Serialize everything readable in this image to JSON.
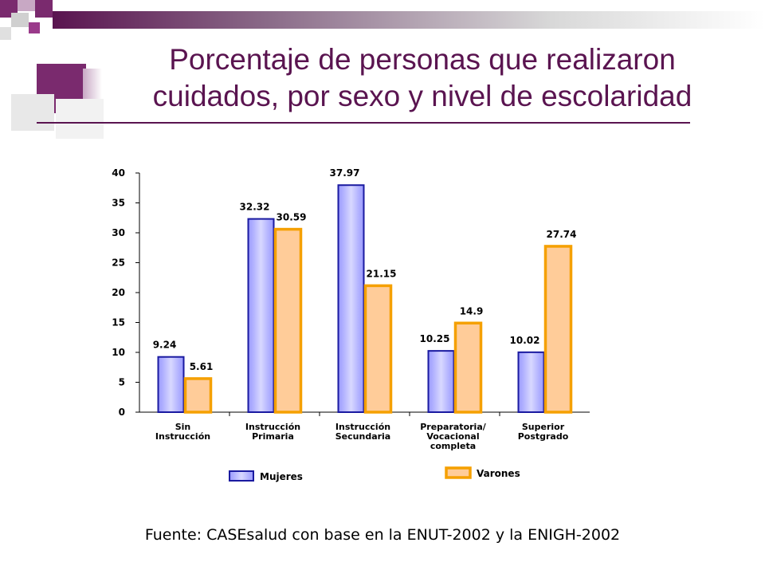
{
  "slide": {
    "title_line1": "Porcentaje de personas que realizaron",
    "title_line2": "cuidados, por sexo y nivel de escolaridad",
    "source": "Fuente: CASEsalud con base en la ENUT-2002 y la ENIGH-2002"
  },
  "colors": {
    "title": "#5a1450",
    "mujeres_fill": "#9999ff",
    "mujeres_stroke": "#1a1aa0",
    "varones_fill": "#ffcc99",
    "varones_stroke": "#f5a000"
  },
  "chart_data": {
    "type": "bar",
    "title": "",
    "xlabel": "",
    "ylabel": "",
    "ylim": [
      0,
      40
    ],
    "yticks": [
      0,
      5,
      10,
      15,
      20,
      25,
      30,
      35,
      40
    ],
    "grid": false,
    "legend_position": "bottom",
    "categories": [
      [
        "Sin",
        "Instrucción"
      ],
      [
        "Instrucción",
        "Primaria"
      ],
      [
        "Instrucción",
        "Secundaria"
      ],
      [
        "Preparatoria/",
        "Vocacional",
        "completa"
      ],
      [
        "Superior",
        "Postgrado"
      ]
    ],
    "series": [
      {
        "name": "Mujeres",
        "values": [
          9.24,
          32.32,
          37.97,
          10.25,
          10.02
        ],
        "labels": [
          "9.24",
          "32.32",
          "37.97",
          "10.25",
          "10.02"
        ]
      },
      {
        "name": "Varones",
        "values": [
          5.61,
          30.59,
          21.15,
          14.9,
          27.74
        ],
        "labels": [
          "5.61",
          "30.59",
          "21.15",
          "14.9",
          "27.74"
        ]
      }
    ]
  }
}
